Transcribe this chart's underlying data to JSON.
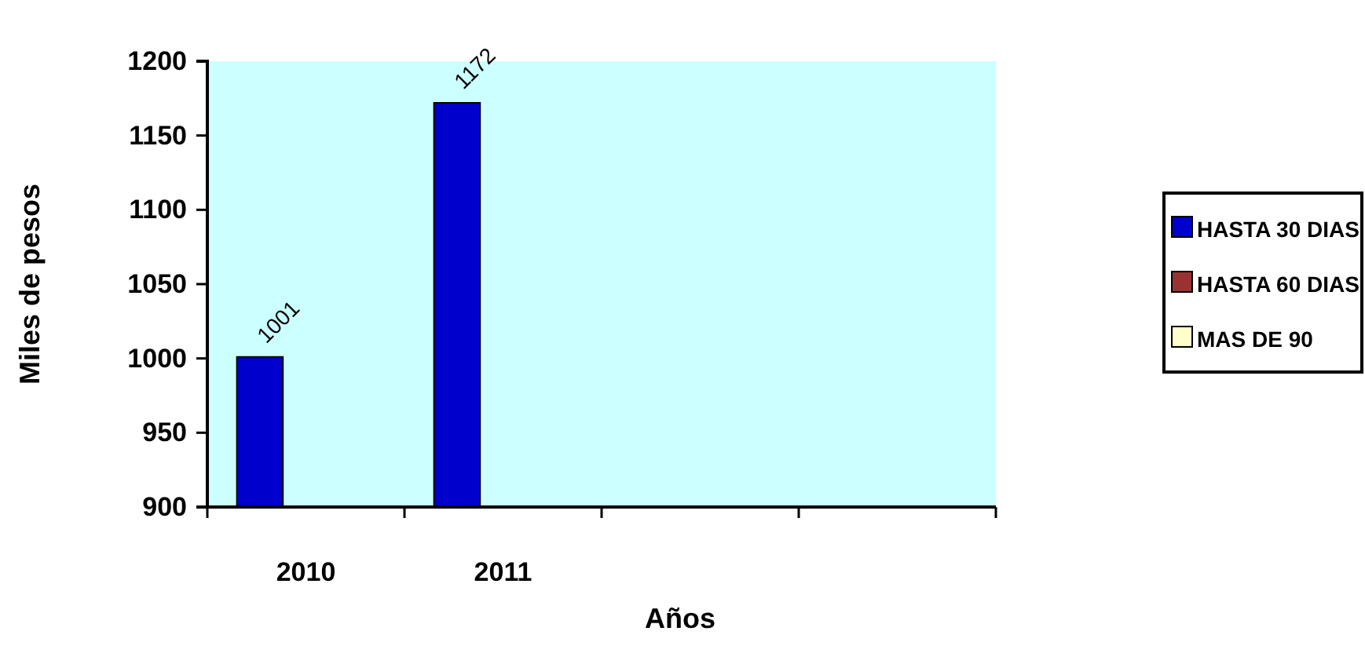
{
  "chart_data": {
    "type": "bar",
    "xlabel": "Años",
    "ylabel": "Miles de pesos",
    "categories": [
      "2010",
      "2011",
      null,
      null
    ],
    "series": [
      {
        "name": "HASTA 30 DIAS",
        "color": "#0000cc",
        "values": [
          1001,
          1172,
          null,
          null
        ]
      },
      {
        "name": "HASTA 60 DIAS",
        "color": "#993333",
        "values": [
          null,
          null,
          null,
          null
        ]
      },
      {
        "name": "MAS DE 90",
        "color": "#ffffcc",
        "values": [
          null,
          null,
          null,
          null
        ]
      }
    ],
    "ylim": [
      900,
      1200
    ],
    "yticks": [
      900,
      950,
      1000,
      1050,
      1100,
      1150,
      1200
    ],
    "data_labels": true,
    "legend": "right"
  }
}
